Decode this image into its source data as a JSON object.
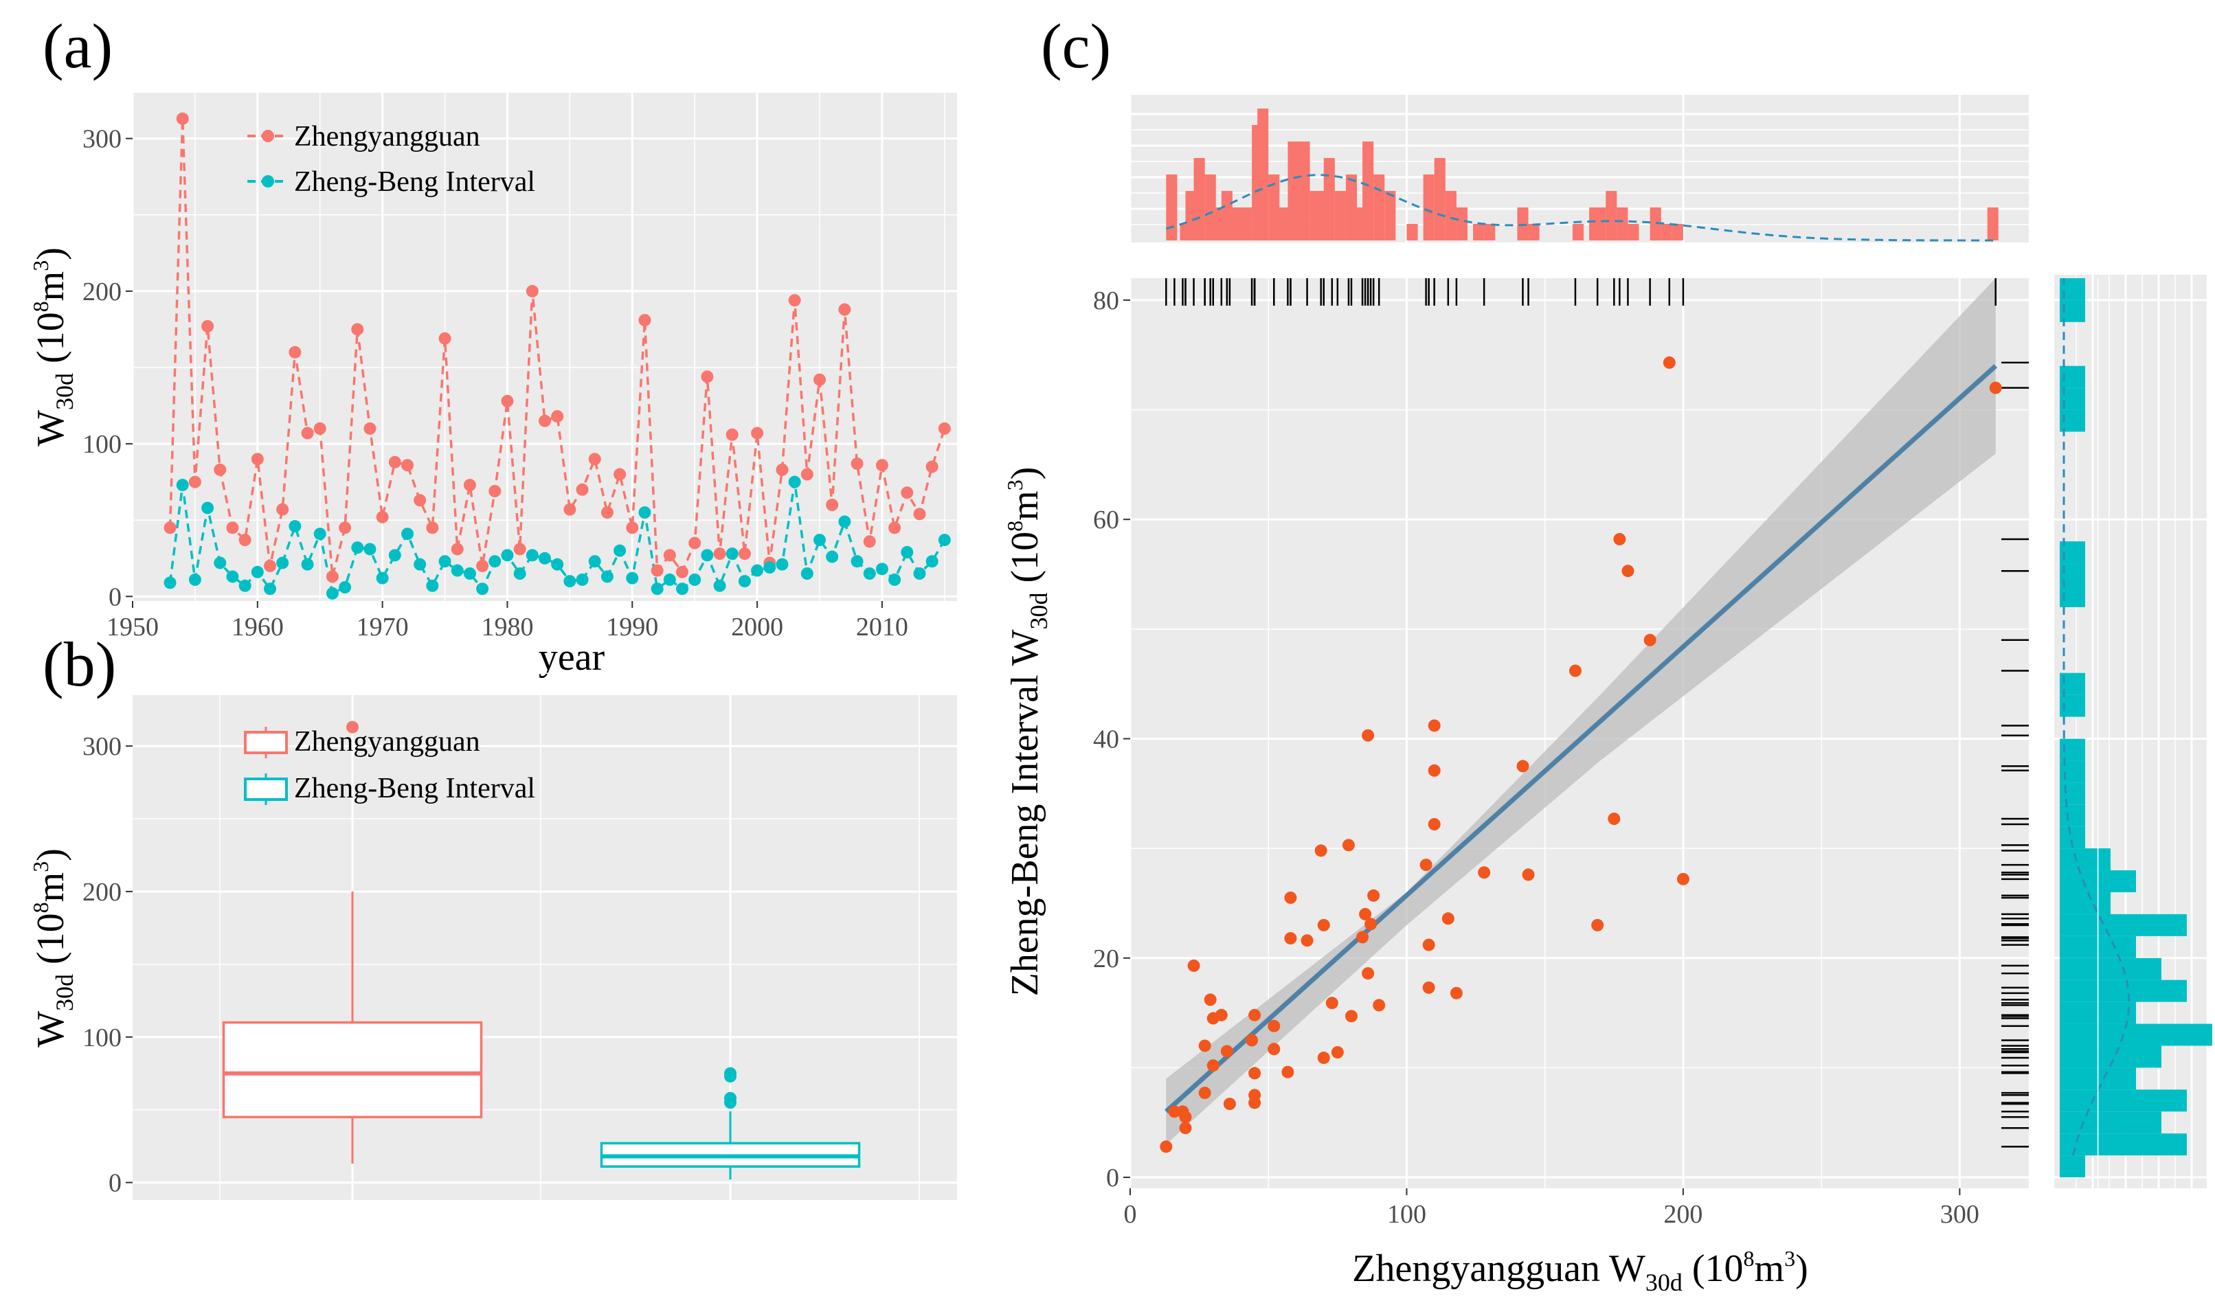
{
  "labels": {
    "a": "(a)",
    "b": "(b)",
    "c": "(c)"
  },
  "colors": {
    "zheng": "#F8766D",
    "beng": "#00BFC4",
    "scatter": "#F2561D",
    "fit": "#4F81A6",
    "panel": "#EBEBEB",
    "band": "#BDBDBD"
  },
  "ylabel_main": "W",
  "ylabel_sub": "30d",
  "ylabel_unit_pre": " (10",
  "ylabel_unit_sup": "8",
  "ylabel_unit_mid": "m",
  "ylabel_unit_sup2": "3",
  "ylabel_unit_post": ")",
  "chart_data": [
    {
      "id": "a",
      "type": "line",
      "xlabel": "year",
      "ylabel": "W30d (10^8m^3)",
      "xlim": [
        1950,
        2016
      ],
      "ylim": [
        -3,
        330
      ],
      "xticks": [
        1950,
        1960,
        1970,
        1980,
        1990,
        2000,
        2010
      ],
      "yticks": [
        0,
        100,
        200,
        300
      ],
      "legend": [
        "Zhengyangguan",
        "Zheng-Beng Interval"
      ],
      "x": [
        1953,
        1954,
        1955,
        1956,
        1957,
        1958,
        1959,
        1960,
        1961,
        1962,
        1963,
        1964,
        1965,
        1966,
        1967,
        1968,
        1969,
        1970,
        1971,
        1972,
        1973,
        1974,
        1975,
        1976,
        1977,
        1978,
        1979,
        1980,
        1981,
        1982,
        1983,
        1984,
        1985,
        1986,
        1987,
        1988,
        1989,
        1990,
        1991,
        1992,
        1993,
        1994,
        1995,
        1996,
        1997,
        1998,
        1999,
        2000,
        2001,
        2002,
        2003,
        2004,
        2005,
        2006,
        2007,
        2008,
        2009,
        2010,
        2011,
        2012,
        2013,
        2014,
        2015
      ],
      "series": [
        {
          "name": "Zhengyangguan",
          "values": [
            45,
            313,
            75,
            177,
            83,
            45,
            37,
            90,
            20,
            57,
            160,
            107,
            110,
            13,
            45,
            175,
            110,
            52,
            88,
            86,
            63,
            45,
            169,
            31,
            73,
            20,
            69,
            128,
            31,
            200,
            115,
            118,
            57,
            70,
            90,
            55,
            80,
            45,
            181,
            17,
            27,
            16,
            35,
            144,
            28,
            106,
            28,
            107,
            22,
            83,
            194,
            80,
            142,
            60,
            188,
            87,
            36,
            86,
            45,
            68,
            54,
            85,
            110
          ]
        },
        {
          "name": "Zheng-Beng Interval",
          "values": [
            9,
            73,
            11,
            58,
            22,
            13,
            7,
            16,
            5,
            22,
            46,
            21,
            41,
            2,
            6,
            32,
            31,
            12,
            27,
            41,
            21,
            7,
            23,
            17,
            15,
            5,
            23,
            27,
            15,
            27,
            25,
            21,
            10,
            11,
            23,
            13,
            30,
            12,
            55,
            5,
            11,
            5,
            11,
            27,
            7,
            28,
            10,
            17,
            19,
            21,
            75,
            15,
            37,
            26,
            49,
            23,
            15,
            18,
            11,
            29,
            15,
            23,
            37
          ]
        }
      ]
    },
    {
      "id": "b",
      "type": "box",
      "ylabel": "W30d (10^8m^3)",
      "ylim": [
        -12,
        335
      ],
      "yticks": [
        0,
        100,
        200,
        300
      ],
      "legend": [
        "Zhengyangguan",
        "Zheng-Beng Interval"
      ],
      "boxes": [
        {
          "name": "Zhengyangguan",
          "min": 13,
          "q1": 45,
          "median": 75,
          "q3": 110,
          "max": 200,
          "outliers": [
            313
          ]
        },
        {
          "name": "Zheng-Beng Interval",
          "min": 2,
          "q1": 11,
          "median": 18,
          "q3": 27,
          "max": 49,
          "outliers": [
            55,
            58,
            73,
            75
          ]
        }
      ]
    },
    {
      "id": "c",
      "type": "scatter",
      "xlabel": "Zhengyangguan W30d (10^8m^3)",
      "ylabel": "Zheng-Beng Interval W30d (10^8m^3)",
      "xlim": [
        0,
        325
      ],
      "ylim": [
        -1,
        82
      ],
      "xticks": [
        0,
        100,
        200,
        300
      ],
      "yticks": [
        0,
        20,
        40,
        60,
        80
      ],
      "fit": {
        "x0": 13,
        "y0": 6,
        "x1": 313,
        "y1": 74
      },
      "band": {
        "lower": [
          [
            13,
            3
          ],
          [
            100,
            23
          ],
          [
            170,
            38
          ],
          [
            313,
            66
          ]
        ],
        "upper": [
          [
            13,
            9
          ],
          [
            100,
            26
          ],
          [
            170,
            44
          ],
          [
            313,
            82
          ]
        ]
      },
      "points": [
        [
          13,
          2.8
        ],
        [
          16,
          6
        ],
        [
          19,
          6
        ],
        [
          20,
          4.5
        ],
        [
          20,
          5.5
        ],
        [
          23,
          19.3
        ],
        [
          27,
          12
        ],
        [
          27,
          7.7
        ],
        [
          29,
          16.2
        ],
        [
          30,
          14.5
        ],
        [
          30,
          10.2
        ],
        [
          33,
          14.8
        ],
        [
          35,
          11.5
        ],
        [
          36,
          6.7
        ],
        [
          44,
          12.5
        ],
        [
          45,
          14.8
        ],
        [
          45,
          9.5
        ],
        [
          45,
          7.5
        ],
        [
          45,
          6.8
        ],
        [
          52,
          11.7
        ],
        [
          52,
          13.8
        ],
        [
          57,
          9.6
        ],
        [
          58,
          25.5
        ],
        [
          58,
          21.8
        ],
        [
          64,
          21.6
        ],
        [
          69,
          29.8
        ],
        [
          70,
          10.9
        ],
        [
          70,
          23
        ],
        [
          73,
          15.9
        ],
        [
          75,
          11.4
        ],
        [
          79,
          30.3
        ],
        [
          80,
          14.7
        ],
        [
          84,
          21.9
        ],
        [
          85,
          24
        ],
        [
          86,
          40.3
        ],
        [
          86,
          18.6
        ],
        [
          87,
          23.1
        ],
        [
          88,
          25.7
        ],
        [
          90,
          15.7
        ],
        [
          107,
          28.5
        ],
        [
          108,
          21.2
        ],
        [
          108,
          17.3
        ],
        [
          110,
          41.2
        ],
        [
          110,
          37.1
        ],
        [
          110,
          32.2
        ],
        [
          115,
          23.6
        ],
        [
          118,
          16.8
        ],
        [
          128,
          27.8
        ],
        [
          142,
          37.5
        ],
        [
          144,
          27.6
        ],
        [
          161,
          46.2
        ],
        [
          169,
          23
        ],
        [
          175,
          32.7
        ],
        [
          177,
          58.2
        ],
        [
          180,
          55.3
        ],
        [
          188,
          49
        ],
        [
          195,
          74.3
        ],
        [
          200,
          27.2
        ],
        [
          313,
          72
        ]
      ],
      "top_hist": {
        "bins": [
          [
            13,
            4
          ],
          [
            18,
            1
          ],
          [
            20,
            3
          ],
          [
            23,
            5
          ],
          [
            27,
            4
          ],
          [
            29,
            2
          ],
          [
            31,
            2
          ],
          [
            33,
            3
          ],
          [
            36,
            2
          ],
          [
            40,
            2
          ],
          [
            44,
            7
          ],
          [
            46,
            8
          ],
          [
            50,
            4
          ],
          [
            52,
            2
          ],
          [
            55,
            2
          ],
          [
            57,
            6
          ],
          [
            61,
            6
          ],
          [
            65,
            3
          ],
          [
            67,
            3
          ],
          [
            70,
            5
          ],
          [
            74,
            3
          ],
          [
            78,
            4
          ],
          [
            82,
            2
          ],
          [
            84,
            6
          ],
          [
            88,
            4
          ],
          [
            92,
            3
          ],
          [
            100,
            1
          ],
          [
            106,
            4
          ],
          [
            110,
            5
          ],
          [
            114,
            3
          ],
          [
            118,
            2
          ],
          [
            124,
            1
          ],
          [
            128,
            1
          ],
          [
            140,
            2
          ],
          [
            144,
            1
          ],
          [
            160,
            1
          ],
          [
            166,
            2
          ],
          [
            168,
            2
          ],
          [
            172,
            3
          ],
          [
            176,
            2
          ],
          [
            180,
            1
          ],
          [
            188,
            2
          ],
          [
            192,
            1
          ],
          [
            196,
            1
          ],
          [
            310,
            2
          ]
        ]
      },
      "right_hist": {
        "bins": [
          [
            2,
            1
          ],
          [
            4,
            5
          ],
          [
            6,
            4
          ],
          [
            8,
            5
          ],
          [
            10,
            3
          ],
          [
            12,
            4
          ],
          [
            14,
            6
          ],
          [
            16,
            3
          ],
          [
            18,
            5
          ],
          [
            20,
            4
          ],
          [
            22,
            3
          ],
          [
            24,
            5
          ],
          [
            26,
            2
          ],
          [
            28,
            3
          ],
          [
            30,
            2
          ],
          [
            32,
            1
          ],
          [
            34,
            1
          ],
          [
            36,
            1
          ],
          [
            38,
            1
          ],
          [
            40,
            1
          ],
          [
            44,
            1
          ],
          [
            46,
            1
          ],
          [
            54,
            1
          ],
          [
            56,
            1
          ],
          [
            58,
            1
          ],
          [
            70,
            1
          ],
          [
            72,
            1
          ],
          [
            74,
            1
          ],
          [
            80,
            1
          ],
          [
            82,
            1
          ]
        ]
      }
    }
  ]
}
